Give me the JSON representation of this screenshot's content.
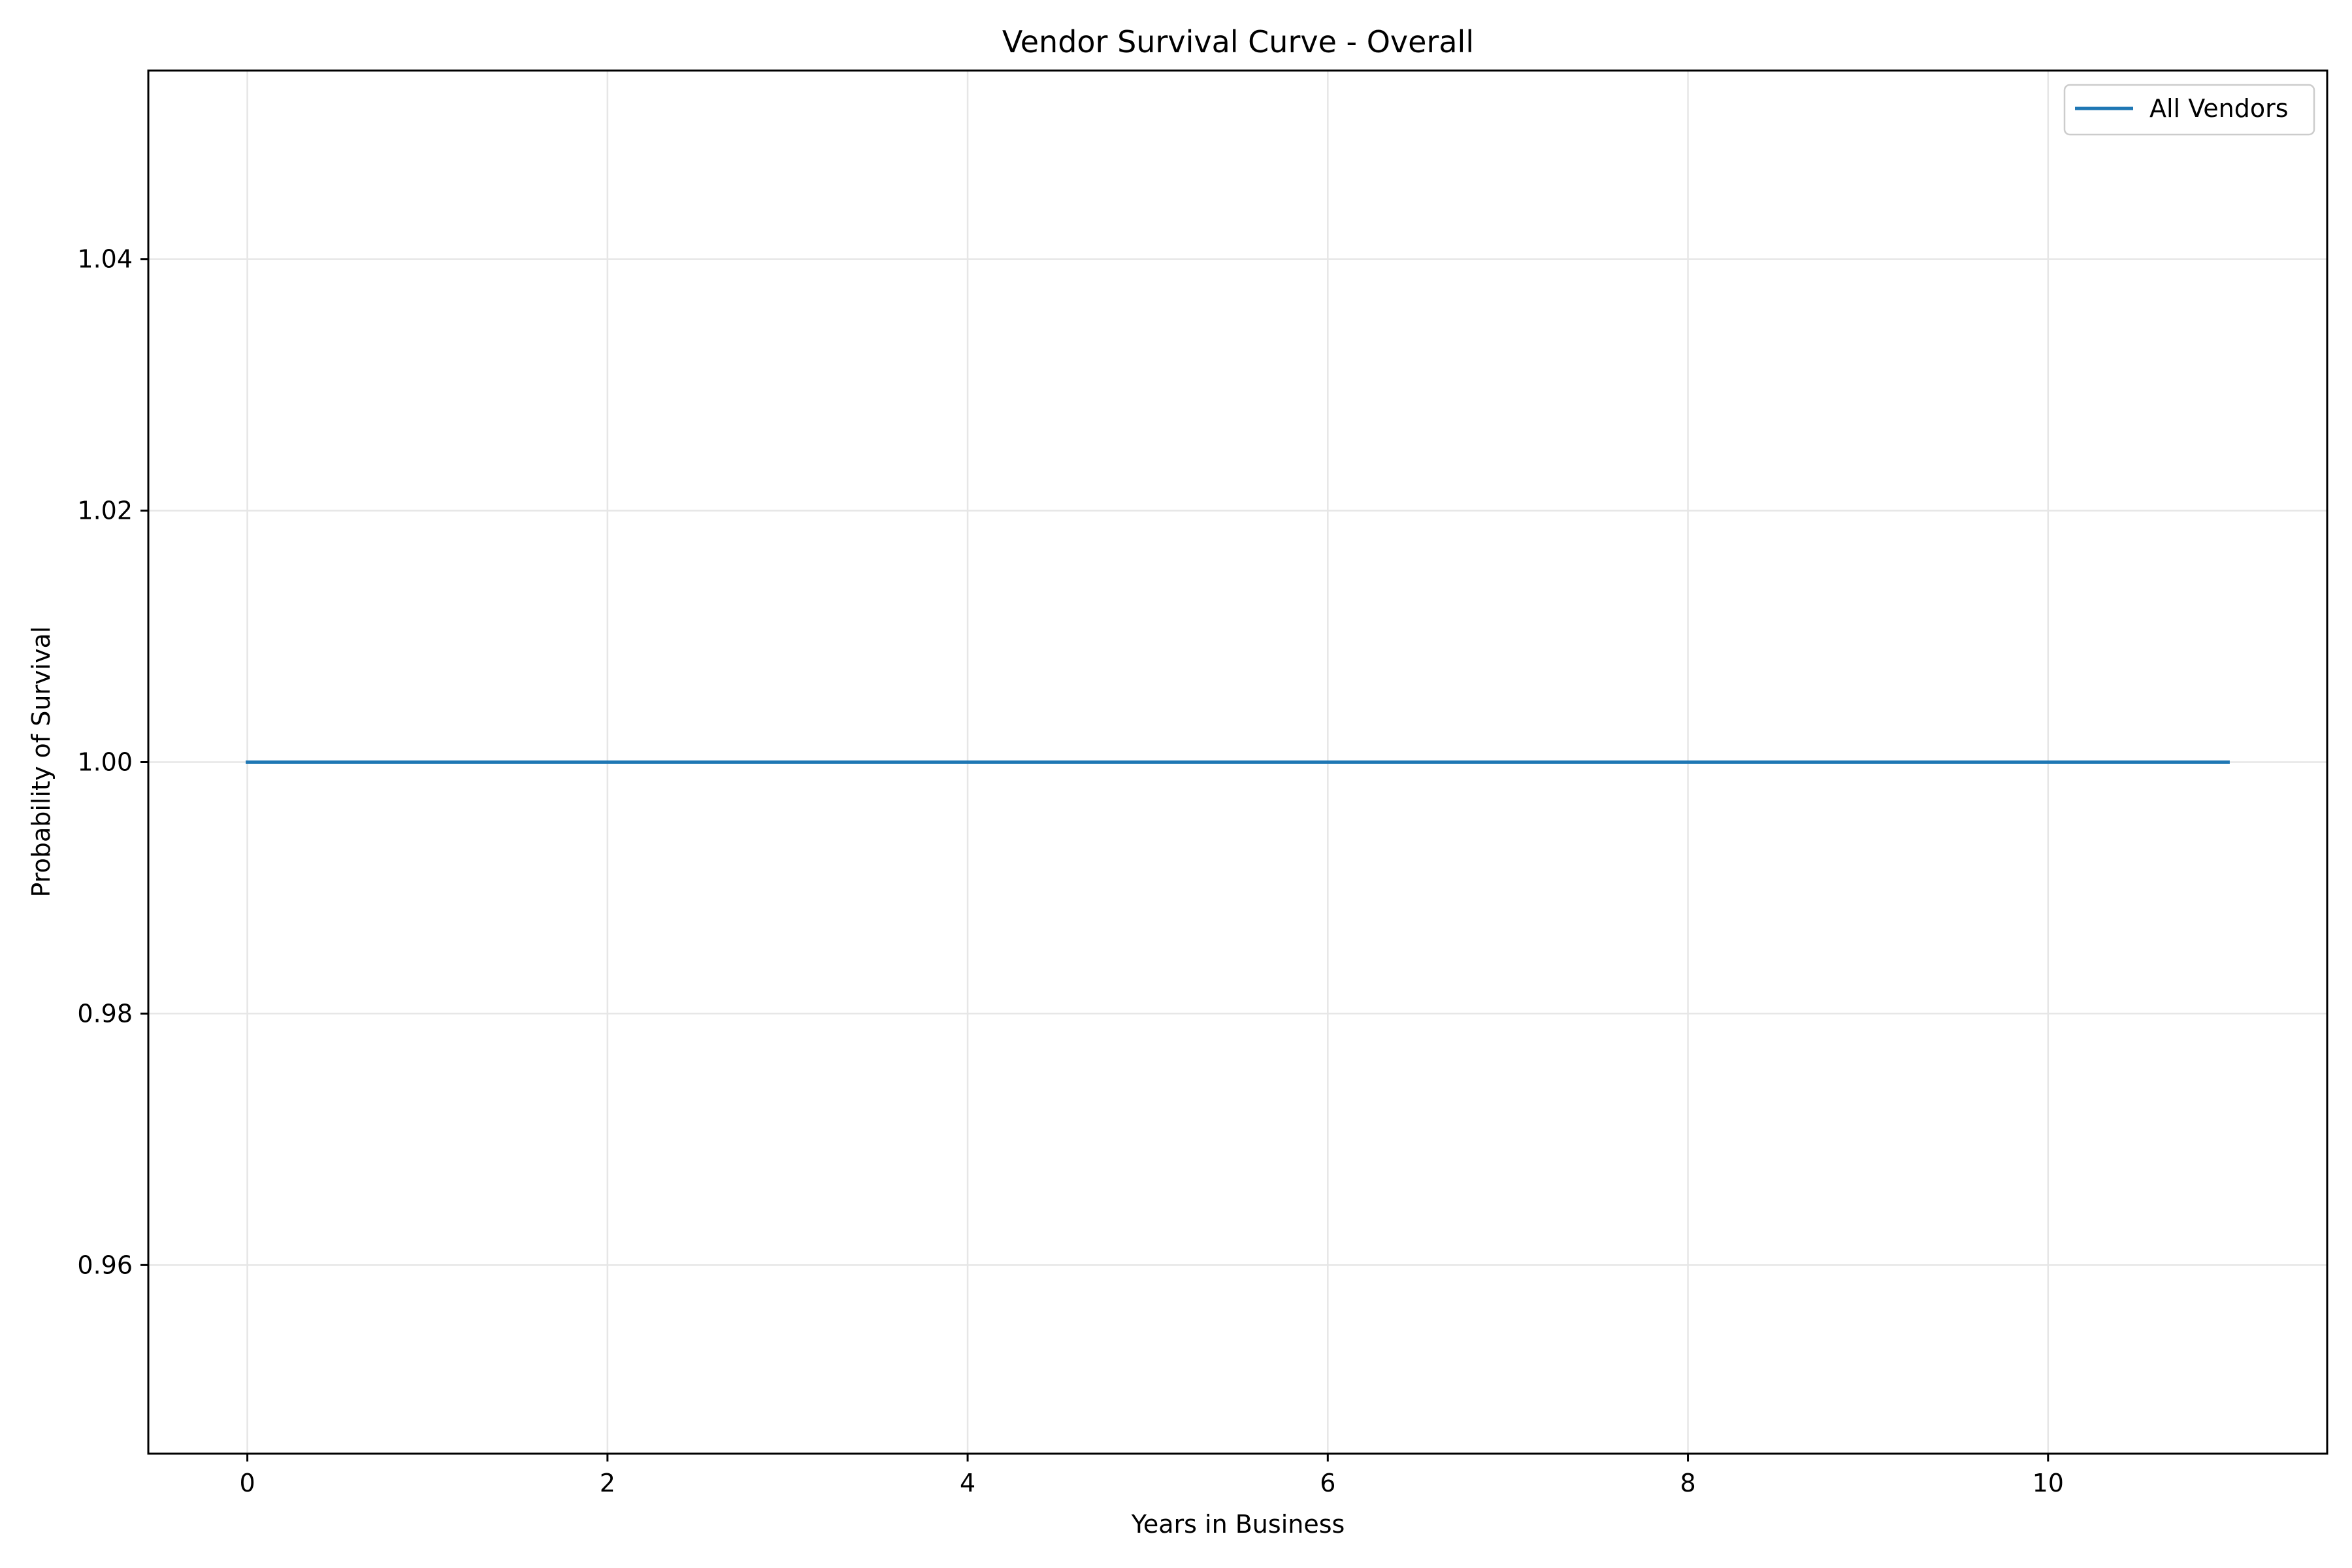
{
  "chart_data": {
    "type": "line",
    "title": "Vendor Survival Curve - Overall",
    "xlabel": "Years in Business",
    "ylabel": "Probability of Survival",
    "xlim": [
      -0.55,
      11.55
    ],
    "ylim": [
      0.945,
      1.055
    ],
    "x_ticks": [
      0,
      2,
      4,
      6,
      8,
      10
    ],
    "x_tick_labels": [
      "0",
      "2",
      "4",
      "6",
      "8",
      "10"
    ],
    "y_ticks": [
      0.96,
      0.98,
      1.0,
      1.02,
      1.04
    ],
    "y_tick_labels": [
      "0.96",
      "0.98",
      "1.00",
      "1.02",
      "1.04"
    ],
    "grid": true,
    "legend_position": "upper-right",
    "series": [
      {
        "name": "All Vendors",
        "color": "#1f77b4",
        "x": [
          0,
          1,
          2,
          3,
          4,
          5,
          6,
          7,
          8,
          9,
          10,
          11
        ],
        "y": [
          1.0,
          1.0,
          1.0,
          1.0,
          1.0,
          1.0,
          1.0,
          1.0,
          1.0,
          1.0,
          1.0,
          1.0
        ]
      }
    ]
  }
}
